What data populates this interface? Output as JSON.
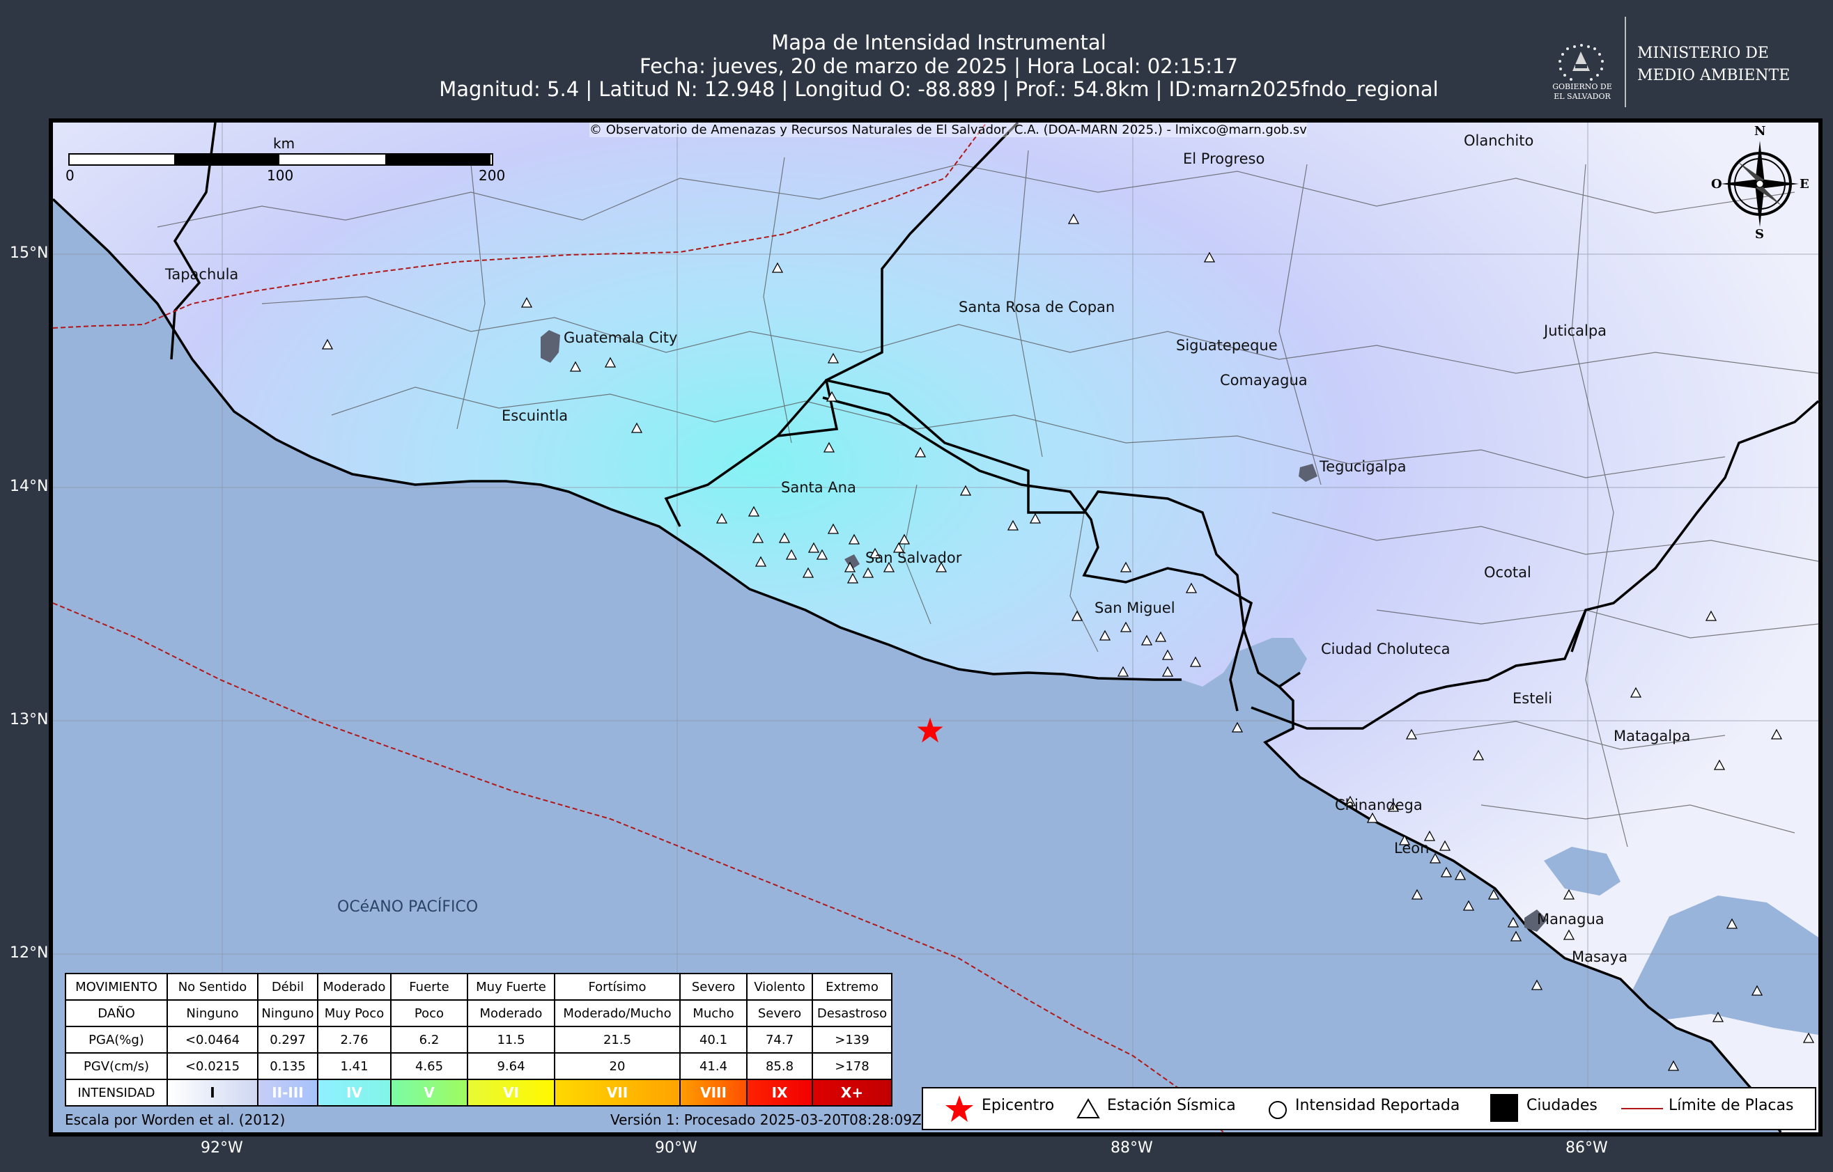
{
  "header": {
    "title": "Mapa de Intensidad Instrumental",
    "date_line": "Fecha: jueves, 20 de marzo de 2025 | Hora Local: 02:15:17",
    "params_line": "Magnitud: 5.4 | Latitud N: 12.948 | Longitud O: -88.889 | Prof.: 54.8km | ID:marn2025fndo_regional"
  },
  "logo": {
    "gov_line1": "GOBIERNO DE",
    "gov_line2": "EL SALVADOR",
    "ministry_line1": "MINISTERIO DE",
    "ministry_line2": "MEDIO AMBIENTE"
  },
  "map": {
    "copyright": "© Observatorio de Amenazas y Recursos Naturales de El Salvador, C.A. (DOA-MARN 2025.) - lmixco@marn.gob.sv",
    "scale_unit": "km",
    "scale_ticks": [
      "0",
      "100",
      "200"
    ],
    "compass": {
      "n": "N",
      "s": "S",
      "e": "E",
      "w": "O"
    },
    "lat_labels": [
      "15°N",
      "14°N",
      "13°N",
      "12°N"
    ],
    "lon_labels": [
      "92°W",
      "90°W",
      "88°W",
      "86°W"
    ],
    "ocean_label": "OCéANO PACÍFICO",
    "cities": [
      "El Progreso",
      "Olanchito",
      "Tapachula",
      "Guatemala City",
      "Santa Rosa de Copan",
      "Siguatepeque",
      "Comayagua",
      "Juticalpa",
      "Escuintla",
      "Santa Ana",
      "Tegucigalpa",
      "San Salvador",
      "Ocotal",
      "San Miguel",
      "Ciudad Choluteca",
      "Esteli",
      "Matagalpa",
      "Chinandega",
      "Leon",
      "Managua",
      "Masaya"
    ],
    "epicenter": {
      "lat": 12.948,
      "lon": -88.889
    },
    "colors": {
      "ocean": "#98b4db",
      "land": "#f2f2f8",
      "epicenter": "#ff0000",
      "plate_boundary": "#b01818"
    }
  },
  "legend": {
    "rows": [
      {
        "label": "MOVIMIENTO",
        "cells": [
          "No Sentido",
          "Débil",
          "Moderado",
          "Fuerte",
          "Muy Fuerte",
          "Fortísimo",
          "Severo",
          "Violento",
          "Extremo"
        ]
      },
      {
        "label": "DAÑO",
        "cells": [
          "Ninguno",
          "Ninguno",
          "Muy Poco",
          "Poco",
          "Moderado",
          "Moderado/Mucho",
          "Mucho",
          "Severo",
          "Desastroso"
        ]
      },
      {
        "label": "PGA(%g)",
        "cells": [
          "<0.0464",
          "0.297",
          "2.76",
          "6.2",
          "11.5",
          "21.5",
          "40.1",
          "74.7",
          ">139"
        ]
      },
      {
        "label": "PGV(cm/s)",
        "cells": [
          "<0.0215",
          "0.135",
          "1.41",
          "4.65",
          "9.64",
          "20",
          "41.4",
          "85.8",
          ">178"
        ]
      }
    ],
    "intensity_label": "INTENSIDAD",
    "intensity_cells": [
      "I",
      "II-III",
      "IV",
      "V",
      "VI",
      "VII",
      "VIII",
      "IX",
      "X+"
    ],
    "intensity_colors": [
      [
        "#ffffff",
        "#cfd8f2"
      ],
      [
        "#c6cdf6",
        "#a6c2fb"
      ],
      [
        "#8ff0ff",
        "#82f5e8"
      ],
      [
        "#7bfba6",
        "#9ffb60"
      ],
      [
        "#e8fa35",
        "#fff800"
      ],
      [
        "#ffd800",
        "#ffa300"
      ],
      [
        "#ff9c00",
        "#ff5000"
      ],
      [
        "#ff2200",
        "#f10000"
      ],
      [
        "#dd0000",
        "#c20000"
      ]
    ],
    "scale_note": "Escala por Worden et al. (2012)",
    "version_note": "Versión 1: Procesado 2025-03-20T08:28:09Z"
  },
  "symbol_legend": {
    "epicenter": "Epicentro",
    "station": "Estación Sísmica",
    "reported": "Intensidad Reportada",
    "cities": "Ciudades",
    "plates": "Límite de Placas"
  }
}
